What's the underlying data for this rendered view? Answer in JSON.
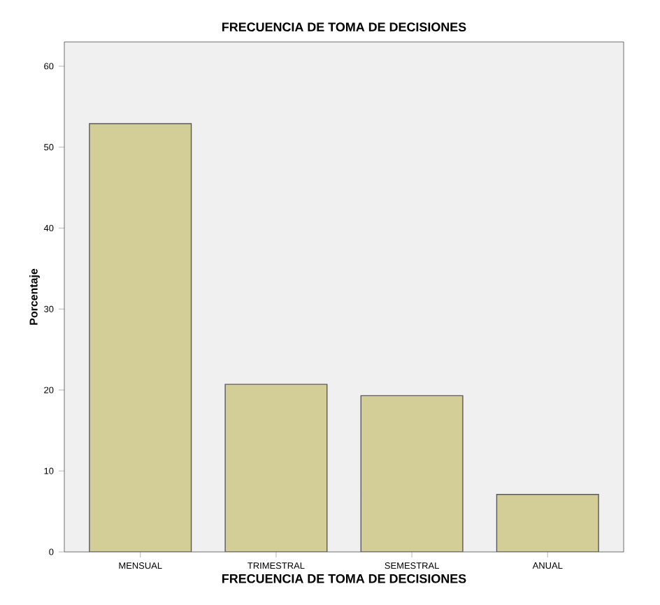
{
  "chart_data": {
    "type": "bar",
    "title": "FRECUENCIA DE TOMA DE DECISIONES",
    "xlabel": "FRECUENCIA DE TOMA DE DECISIONES",
    "ylabel": "Porcentaje",
    "categories": [
      "MENSUAL",
      "TRIMESTRAL",
      "SEMESTRAL",
      "ANUAL"
    ],
    "values": [
      52.9,
      20.7,
      19.3,
      7.1
    ],
    "color": "#d3ce97",
    "ylim": [
      0,
      63
    ],
    "yticks": [
      0,
      10,
      20,
      30,
      40,
      50,
      60
    ],
    "grid": false
  }
}
